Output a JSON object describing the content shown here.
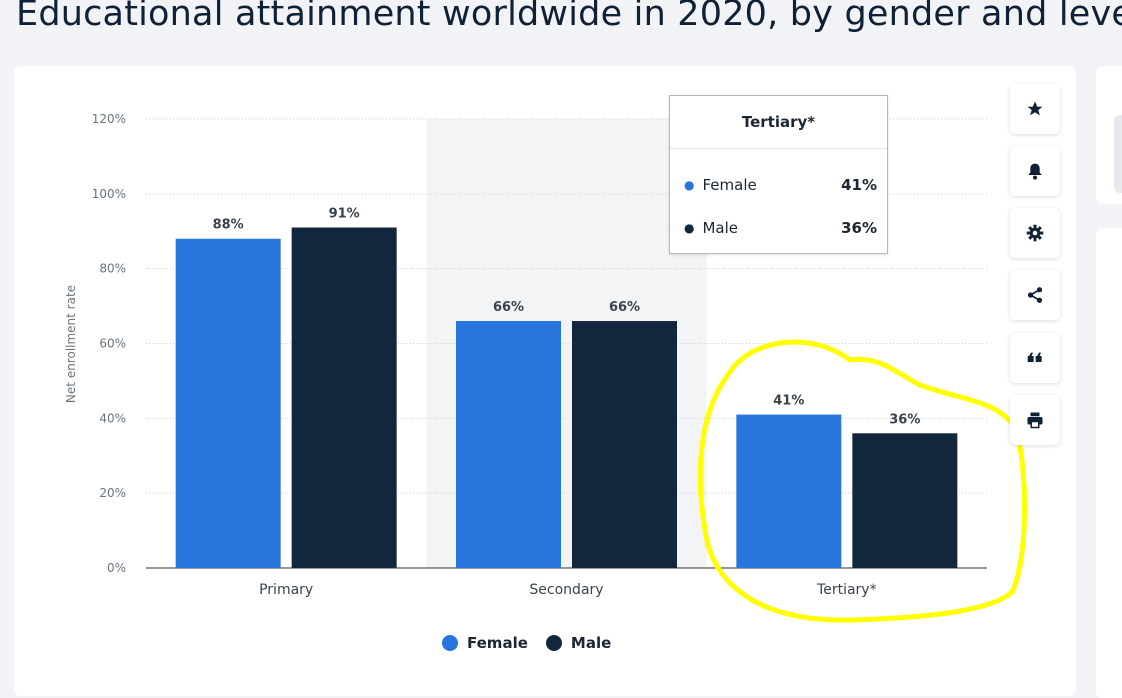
{
  "page": {
    "title": "Educational attainment worldwide in 2020, by gender and level"
  },
  "colors": {
    "female": "#2876dd",
    "male": "#12263d",
    "highlight_band": "#f3f4f6",
    "annotation": "#ffff00"
  },
  "toolbar": {
    "icons": [
      "star-icon",
      "bell-icon",
      "gear-icon",
      "share-icon",
      "quote-icon",
      "print-icon"
    ]
  },
  "chart_data": {
    "type": "bar",
    "title": "",
    "xlabel": "",
    "ylabel": "Net enrollment rate",
    "categories": [
      "Primary",
      "Secondary",
      "Tertiary*"
    ],
    "series": [
      {
        "name": "Female",
        "values": [
          88,
          66,
          41
        ],
        "labels": [
          "88%",
          "66%",
          "41%"
        ]
      },
      {
        "name": "Male",
        "values": [
          91,
          66,
          36
        ],
        "labels": [
          "91%",
          "66%",
          "36%"
        ]
      }
    ],
    "yticks": [
      "0%",
      "20%",
      "40%",
      "60%",
      "80%",
      "100%",
      "120%"
    ],
    "ylim": [
      0,
      120
    ],
    "grid": true,
    "legend": "bottom-center",
    "highlighted_category": "Secondary",
    "annotation": "yellow freehand circle around Tertiary*"
  },
  "tooltip": {
    "title": "Tertiary*",
    "rows": [
      {
        "label": "Female",
        "value": "41%"
      },
      {
        "label": "Male",
        "value": "36%"
      }
    ]
  },
  "legend": {
    "items": [
      "Female",
      "Male"
    ]
  }
}
